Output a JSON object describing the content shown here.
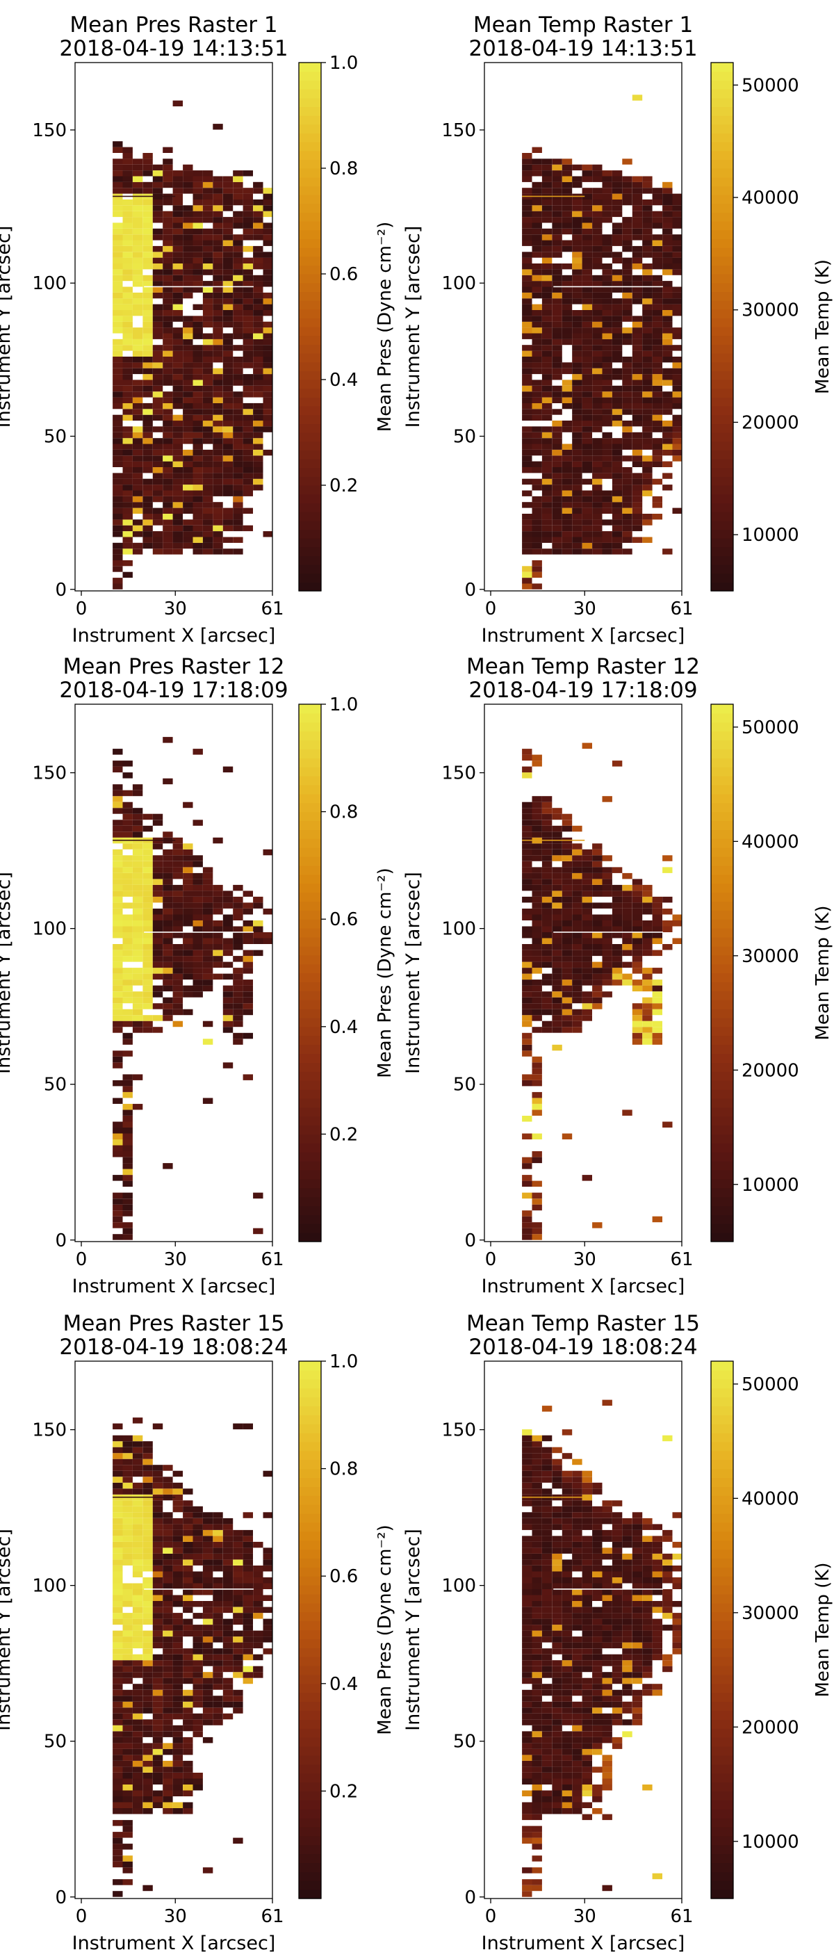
{
  "chart_data": [
    {
      "type": "heatmap",
      "quantity": "pres",
      "title": "Mean Pres Raster 1",
      "subtitle": "2018-04-19 14:13:51",
      "xlabel": "Instrument X [arcsec]",
      "ylabel": "Instrument Y [arcsec]",
      "xlim": [
        -2,
        61
      ],
      "ylim": [
        -0.5,
        172
      ],
      "xticks": [
        "0",
        "30",
        "61"
      ],
      "yticks": [
        "0",
        "50",
        "100",
        "150"
      ],
      "colorbar": {
        "label": "Mean Pres (Dyne cm⁻²)",
        "range": [
          0,
          1.0
        ],
        "ticks": [
          "0.2",
          "0.4",
          "0.6",
          "0.8",
          "1.0"
        ]
      }
    },
    {
      "type": "heatmap",
      "quantity": "temp",
      "title": "Mean Temp Raster 1",
      "subtitle": "2018-04-19 14:13:51",
      "xlabel": "Instrument X [arcsec]",
      "ylabel": "Instrument Y [arcsec]",
      "xlim": [
        -2,
        61
      ],
      "ylim": [
        -0.5,
        172
      ],
      "xticks": [
        "0",
        "30",
        "61"
      ],
      "yticks": [
        "0",
        "50",
        "100",
        "150"
      ],
      "colorbar": {
        "label": "Mean Temp (K)",
        "range": [
          5000,
          52000
        ],
        "ticks": [
          "10000",
          "20000",
          "30000",
          "40000",
          "50000"
        ]
      }
    },
    {
      "type": "heatmap",
      "quantity": "pres",
      "title": "Mean Pres Raster 12",
      "subtitle": "2018-04-19 17:18:09",
      "xlabel": "Instrument X [arcsec]",
      "ylabel": "Instrument Y [arcsec]",
      "xlim": [
        -2,
        61
      ],
      "ylim": [
        -0.5,
        172
      ],
      "xticks": [
        "0",
        "30",
        "61"
      ],
      "yticks": [
        "0",
        "50",
        "100",
        "150"
      ],
      "colorbar": {
        "label": "Mean Pres (Dyne cm⁻²)",
        "range": [
          0,
          1.0
        ],
        "ticks": [
          "0.2",
          "0.4",
          "0.6",
          "0.8",
          "1.0"
        ]
      }
    },
    {
      "type": "heatmap",
      "quantity": "temp",
      "title": "Mean Temp Raster 12",
      "subtitle": "2018-04-19 17:18:09",
      "xlabel": "Instrument X [arcsec]",
      "ylabel": "Instrument Y [arcsec]",
      "xlim": [
        -2,
        61
      ],
      "ylim": [
        -0.5,
        172
      ],
      "xticks": [
        "0",
        "30",
        "61"
      ],
      "yticks": [
        "0",
        "50",
        "100",
        "150"
      ],
      "colorbar": {
        "label": "Mean Temp (K)",
        "range": [
          5000,
          52000
        ],
        "ticks": [
          "10000",
          "20000",
          "30000",
          "40000",
          "50000"
        ]
      }
    },
    {
      "type": "heatmap",
      "quantity": "pres",
      "title": "Mean Pres Raster 15",
      "subtitle": "2018-04-19 18:08:24",
      "xlabel": "Instrument X [arcsec]",
      "ylabel": "Instrument Y [arcsec]",
      "xlim": [
        -2,
        61
      ],
      "ylim": [
        -0.5,
        172
      ],
      "xticks": [
        "0",
        "30",
        "61"
      ],
      "yticks": [
        "0",
        "50",
        "100",
        "150"
      ],
      "colorbar": {
        "label": "Mean Pres (Dyne cm⁻²)",
        "range": [
          0,
          1.0
        ],
        "ticks": [
          "0.2",
          "0.4",
          "0.6",
          "0.8",
          "1.0"
        ]
      }
    },
    {
      "type": "heatmap",
      "quantity": "temp",
      "title": "Mean Temp Raster 15",
      "subtitle": "2018-04-19 18:08:24",
      "xlabel": "Instrument X [arcsec]",
      "ylabel": "Instrument Y [arcsec]",
      "xlim": [
        -2,
        61
      ],
      "ylim": [
        -0.5,
        172
      ],
      "xticks": [
        "0",
        "30",
        "61"
      ],
      "yticks": [
        "0",
        "50",
        "100",
        "150"
      ],
      "colorbar": {
        "label": "Mean Temp (K)",
        "range": [
          5000,
          52000
        ],
        "ticks": [
          "10000",
          "20000",
          "30000",
          "40000",
          "50000"
        ]
      }
    }
  ],
  "colormap": [
    "#2a0d0f",
    "#5c1712",
    "#8a2d12",
    "#b8540f",
    "#d8860f",
    "#e8b524",
    "#ecec4a"
  ]
}
